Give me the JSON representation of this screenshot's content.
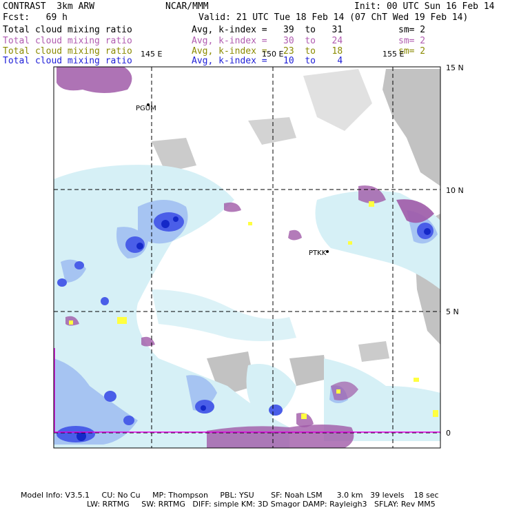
{
  "header": {
    "model": "CONTRAST  3km ARW",
    "center": "NCAR/MMM",
    "init": "Init: 00 UTC Sun 16 Feb 14",
    "fcst": "Fcst:   69 h",
    "valid": "Valid: 21 UTC Tue 18 Feb 14 (07 ChT Wed 19 Feb 14)"
  },
  "fields": [
    {
      "name": "Total cloud mixing ratio",
      "range": "Avg, k-index =   39  to   31",
      "sm": "sm= 2",
      "color": "#000000"
    },
    {
      "name": "Total cloud mixing ratio",
      "range": "Avg, k-index =   30  to   24",
      "sm": "sm= 2",
      "color": "#b05cb0"
    },
    {
      "name": "Total cloud mixing ratio",
      "range": "Avg, k-index =   23  to   18",
      "sm": "sm= 2",
      "color": "#8a8a00"
    },
    {
      "name": "Total cloud mixing ratio",
      "range": "Avg, k-index =   10  to    4",
      "sm": "",
      "color": "#2020d8"
    }
  ],
  "axes": {
    "lon_labels": [
      "145 E",
      "150 E",
      "155 E"
    ],
    "lat_labels": [
      "15 N",
      "10 N",
      "5 N",
      "0"
    ]
  },
  "stations": [
    {
      "id": "PGUM"
    },
    {
      "id": "PTKK"
    }
  ],
  "footer": {
    "line1": "Model Info: V3.5.1     CU: No Cu     MP: Thompson     PBL: YSU       SF: Noah LSM      3.0 km   39 levels    18 sec",
    "line2": "LW: RRTMG     SW: RRTMG   DIFF: simple KM: 3D Smagor DAMP: Rayleigh3   SFLAY: Rev MM5"
  },
  "colors": {
    "cloud_light": "#d6f0f6",
    "cloud_mid": "#a6c4f2",
    "cloud_dense": "#4a5ee8",
    "cloud_core": "#1428c8",
    "purple_fill": "#a05aa8",
    "yellow_fill": "#ffff40",
    "land_gray": "#a8a8a8",
    "grid": "#000000",
    "boundary": "#e000e0"
  }
}
